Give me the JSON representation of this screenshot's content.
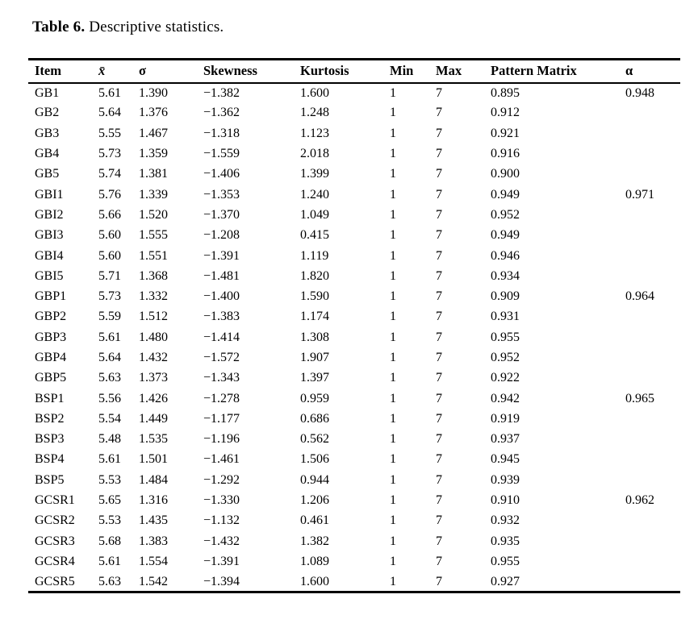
{
  "caption": {
    "label": "Table 6.",
    "text": "Descriptive statistics."
  },
  "table": {
    "columns": [
      "Item",
      "x̄",
      "σ",
      "Skewness",
      "Kurtosis",
      "Min",
      "Max",
      "Pattern Matrix",
      "α"
    ],
    "rows": [
      [
        "GB1",
        "5.61",
        "1.390",
        "−1.382",
        "1.600",
        "1",
        "7",
        "0.895",
        "0.948"
      ],
      [
        "GB2",
        "5.64",
        "1.376",
        "−1.362",
        "1.248",
        "1",
        "7",
        "0.912",
        ""
      ],
      [
        "GB3",
        "5.55",
        "1.467",
        "−1.318",
        "1.123",
        "1",
        "7",
        "0.921",
        ""
      ],
      [
        "GB4",
        "5.73",
        "1.359",
        "−1.559",
        "2.018",
        "1",
        "7",
        "0.916",
        ""
      ],
      [
        "GB5",
        "5.74",
        "1.381",
        "−1.406",
        "1.399",
        "1",
        "7",
        "0.900",
        ""
      ],
      [
        "GBI1",
        "5.76",
        "1.339",
        "−1.353",
        "1.240",
        "1",
        "7",
        "0.949",
        "0.971"
      ],
      [
        "GBI2",
        "5.66",
        "1.520",
        "−1.370",
        "1.049",
        "1",
        "7",
        "0.952",
        ""
      ],
      [
        "GBI3",
        "5.60",
        "1.555",
        "−1.208",
        "0.415",
        "1",
        "7",
        "0.949",
        ""
      ],
      [
        "GBI4",
        "5.60",
        "1.551",
        "−1.391",
        "1.119",
        "1",
        "7",
        "0.946",
        ""
      ],
      [
        "GBI5",
        "5.71",
        "1.368",
        "−1.481",
        "1.820",
        "1",
        "7",
        "0.934",
        ""
      ],
      [
        "GBP1",
        "5.73",
        "1.332",
        "−1.400",
        "1.590",
        "1",
        "7",
        "0.909",
        "0.964"
      ],
      [
        "GBP2",
        "5.59",
        "1.512",
        "−1.383",
        "1.174",
        "1",
        "7",
        "0.931",
        ""
      ],
      [
        "GBP3",
        "5.61",
        "1.480",
        "−1.414",
        "1.308",
        "1",
        "7",
        "0.955",
        ""
      ],
      [
        "GBP4",
        "5.64",
        "1.432",
        "−1.572",
        "1.907",
        "1",
        "7",
        "0.952",
        ""
      ],
      [
        "GBP5",
        "5.63",
        "1.373",
        "−1.343",
        "1.397",
        "1",
        "7",
        "0.922",
        ""
      ],
      [
        "BSP1",
        "5.56",
        "1.426",
        "−1.278",
        "0.959",
        "1",
        "7",
        "0.942",
        "0.965"
      ],
      [
        "BSP2",
        "5.54",
        "1.449",
        "−1.177",
        "0.686",
        "1",
        "7",
        "0.919",
        ""
      ],
      [
        "BSP3",
        "5.48",
        "1.535",
        "−1.196",
        "0.562",
        "1",
        "7",
        "0.937",
        ""
      ],
      [
        "BSP4",
        "5.61",
        "1.501",
        "−1.461",
        "1.506",
        "1",
        "7",
        "0.945",
        ""
      ],
      [
        "BSP5",
        "5.53",
        "1.484",
        "−1.292",
        "0.944",
        "1",
        "7",
        "0.939",
        ""
      ],
      [
        "GCSR1",
        "5.65",
        "1.316",
        "−1.330",
        "1.206",
        "1",
        "7",
        "0.910",
        "0.962"
      ],
      [
        "GCSR2",
        "5.53",
        "1.435",
        "−1.132",
        "0.461",
        "1",
        "7",
        "0.932",
        ""
      ],
      [
        "GCSR3",
        "5.68",
        "1.383",
        "−1.432",
        "1.382",
        "1",
        "7",
        "0.935",
        ""
      ],
      [
        "GCSR4",
        "5.61",
        "1.554",
        "−1.391",
        "1.089",
        "1",
        "7",
        "0.955",
        ""
      ],
      [
        "GCSR5",
        "5.63",
        "1.542",
        "−1.394",
        "1.600",
        "1",
        "7",
        "0.927",
        ""
      ]
    ]
  },
  "colors": {
    "text": "#000000",
    "background": "#ffffff",
    "border": "#000000"
  }
}
